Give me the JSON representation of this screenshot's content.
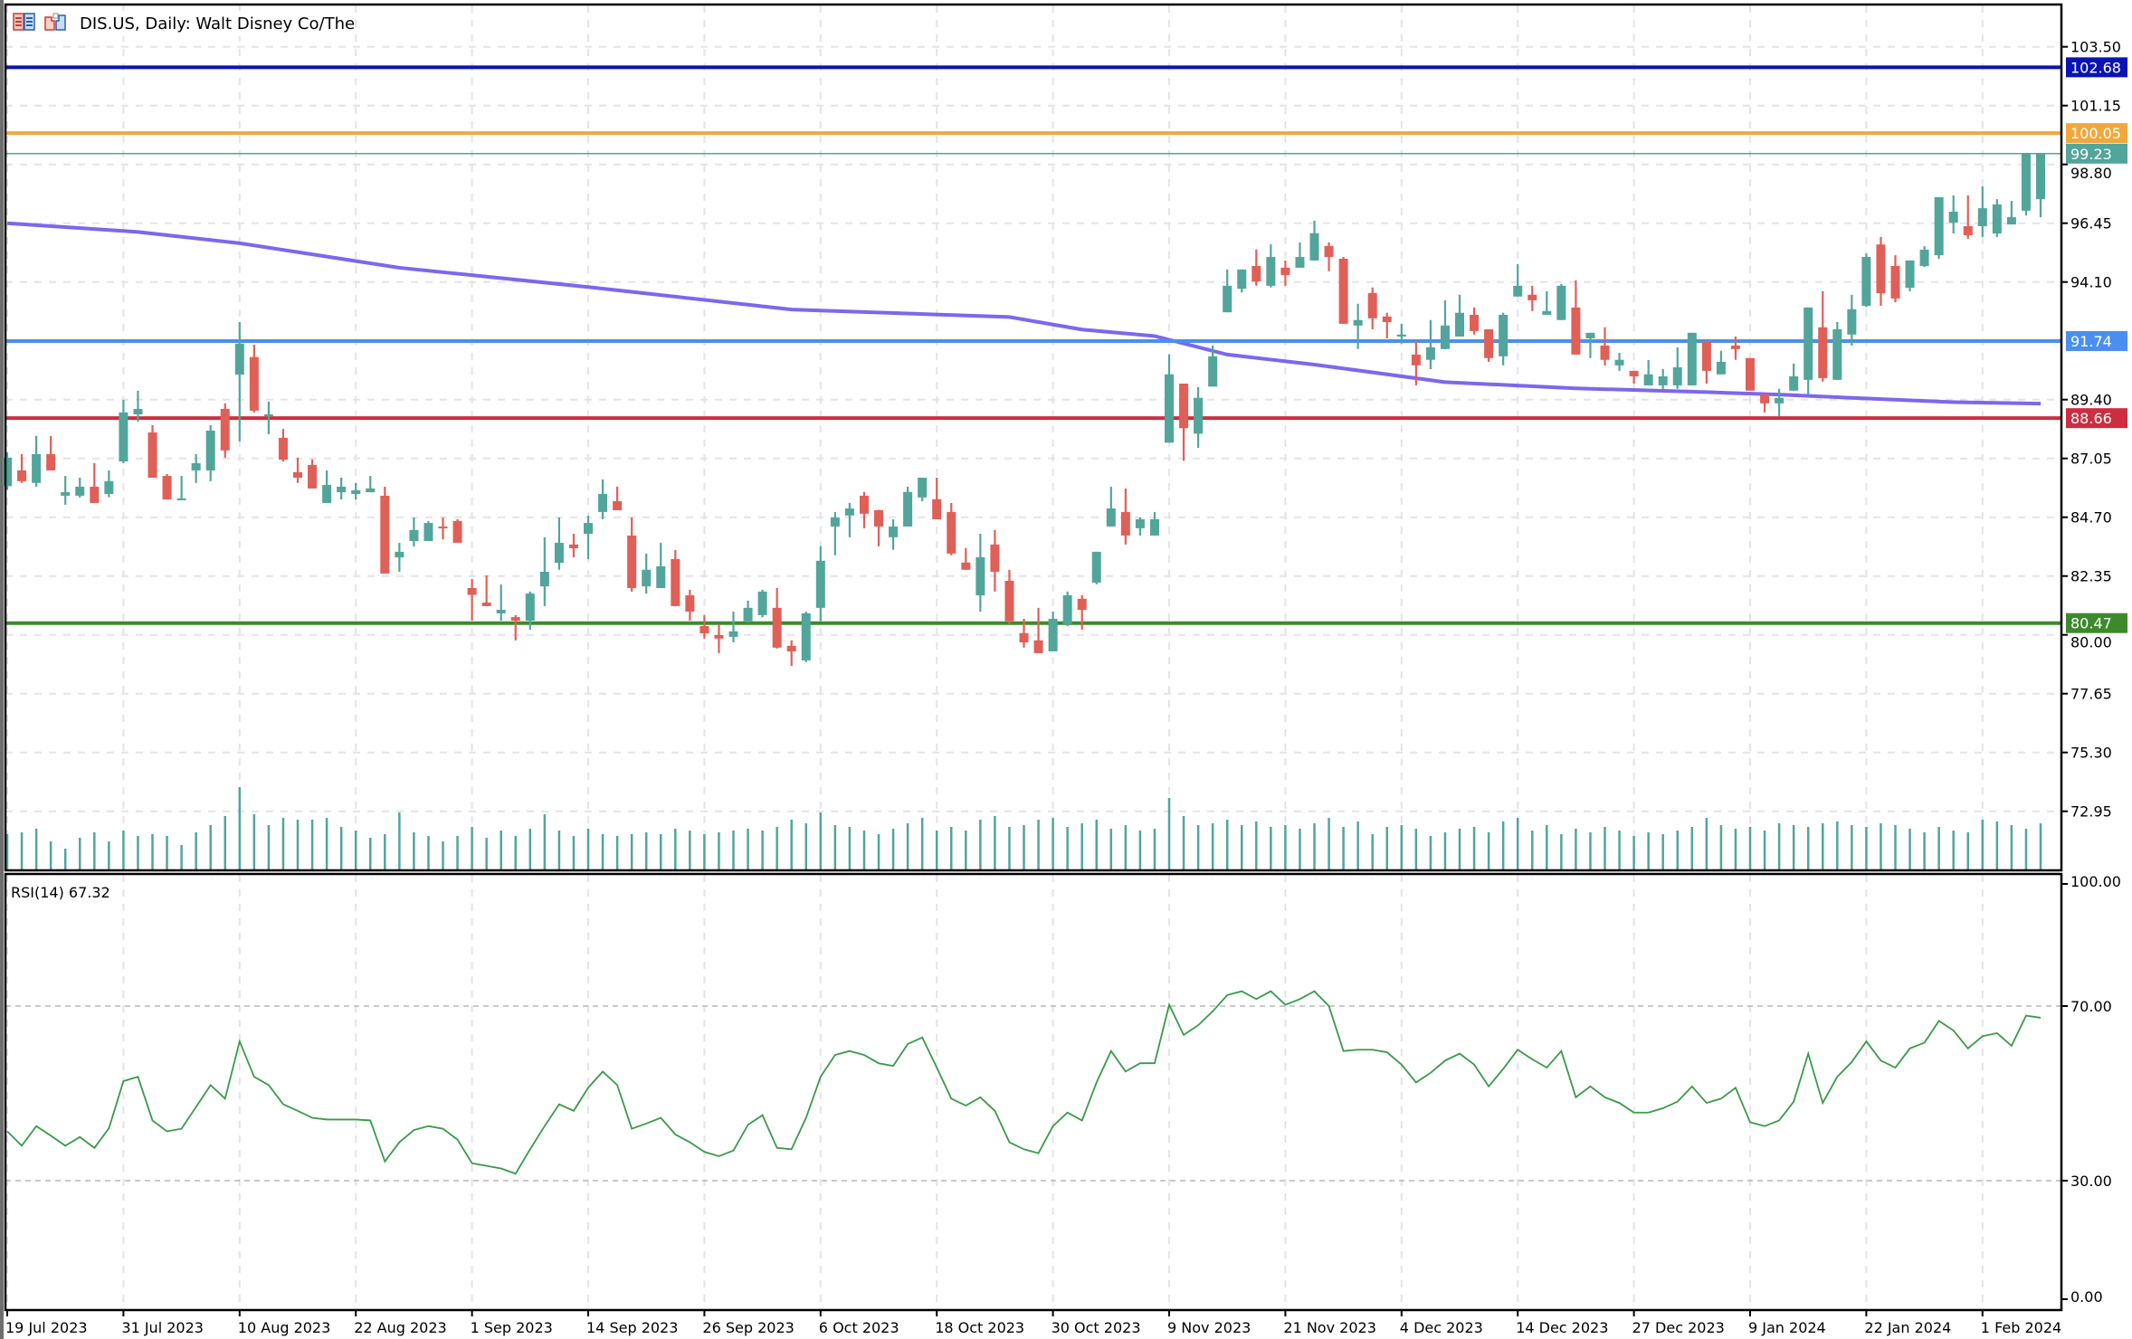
{
  "header": {
    "title": "DIS.US, Daily:  Walt Disney Co/The",
    "icons": [
      "quick-trade-icon",
      "one-click-trading-icon"
    ]
  },
  "colors": {
    "bull": "#52a59a",
    "bear": "#e05f57",
    "ma": "#7b68ee",
    "rsi": "#3a9a48",
    "grid": "#e6e2ea"
  },
  "price_axis": {
    "ticks": [
      "103.50",
      "101.15",
      "98.80",
      "96.45",
      "94.10",
      "89.40",
      "87.05",
      "84.70",
      "82.35",
      "80.00",
      "77.65",
      "75.30",
      "72.95"
    ]
  },
  "levels": [
    {
      "label": "102.68",
      "value": 102.68,
      "color": "#0a14b4"
    },
    {
      "label": "100.05",
      "value": 100.05,
      "color": "#f0a83c"
    },
    {
      "label": "99.23",
      "value": 99.23,
      "color": "#52a59a"
    },
    {
      "label": "91.74",
      "value": 91.74,
      "color": "#4a8ff0"
    },
    {
      "label": "88.66",
      "value": 88.66,
      "color": "#cc2e40"
    },
    {
      "label": "80.47",
      "value": 80.47,
      "color": "#3c8a2c"
    }
  ],
  "date_axis": [
    {
      "label": "19 Jul 2023",
      "index": 0
    },
    {
      "label": "31 Jul 2023",
      "index": 8
    },
    {
      "label": "10 Aug 2023",
      "index": 16
    },
    {
      "label": "22 Aug 2023",
      "index": 24
    },
    {
      "label": "1 Sep 2023",
      "index": 32
    },
    {
      "label": "14 Sep 2023",
      "index": 40
    },
    {
      "label": "26 Sep 2023",
      "index": 48
    },
    {
      "label": "6 Oct 2023",
      "index": 56
    },
    {
      "label": "18 Oct 2023",
      "index": 64
    },
    {
      "label": "30 Oct 2023",
      "index": 72
    },
    {
      "label": "9 Nov 2023",
      "index": 80
    },
    {
      "label": "21 Nov 2023",
      "index": 88
    },
    {
      "label": "4 Dec 2023",
      "index": 96
    },
    {
      "label": "14 Dec 2023",
      "index": 104
    },
    {
      "label": "27 Dec 2023",
      "index": 112
    },
    {
      "label": "9 Jan 2024",
      "index": 120
    },
    {
      "label": "22 Jan 2024",
      "index": 128
    },
    {
      "label": "1 Feb 2024",
      "index": 136
    }
  ],
  "rsi": {
    "label": "RSI(14) 67.32",
    "axis": [
      "100.00",
      "70.00",
      "30.00",
      "0.00"
    ]
  },
  "chart_data": {
    "type": "candlestick",
    "title": "DIS.US, Daily:  Walt Disney Co/The",
    "ylim": [
      70.5,
      105.2
    ],
    "ohlc_order": [
      "open",
      "high",
      "low",
      "close"
    ],
    "candles": [
      [
        85.94,
        87.3,
        85.8,
        87.08
      ],
      [
        86.57,
        87.22,
        86.07,
        86.14
      ],
      [
        86.07,
        87.95,
        85.92,
        87.22
      ],
      [
        87.22,
        87.95,
        86.57,
        86.57
      ],
      [
        85.56,
        86.35,
        85.2,
        85.7
      ],
      [
        85.56,
        86.28,
        85.49,
        85.92
      ],
      [
        85.92,
        86.86,
        85.27,
        85.27
      ],
      [
        85.63,
        86.57,
        85.5,
        86.14
      ],
      [
        86.93,
        89.39,
        86.86,
        88.89
      ],
      [
        88.81,
        89.75,
        88.52,
        89.03
      ],
      [
        88.09,
        88.38,
        86.28,
        86.28
      ],
      [
        86.35,
        86.43,
        85.41,
        85.41
      ],
      [
        85.42,
        86.35,
        85.4,
        85.45
      ],
      [
        86.57,
        87.22,
        86.07,
        86.86
      ],
      [
        86.57,
        88.38,
        86.14,
        88.16
      ],
      [
        89.03,
        89.25,
        87.08,
        87.37
      ],
      [
        90.4,
        92.5,
        87.73,
        91.64
      ],
      [
        91.1,
        91.6,
        88.89,
        88.96
      ],
      [
        88.74,
        89.32,
        88.02,
        88.81
      ],
      [
        87.87,
        88.23,
        86.93,
        87.0
      ],
      [
        86.5,
        87.08,
        86.07,
        86.28
      ],
      [
        86.79,
        87.01,
        85.85,
        85.85
      ],
      [
        85.27,
        86.57,
        85.27,
        85.99
      ],
      [
        85.7,
        86.28,
        85.41,
        85.92
      ],
      [
        85.63,
        86.07,
        85.41,
        85.78
      ],
      [
        85.7,
        86.35,
        85.7,
        85.85
      ],
      [
        85.56,
        85.92,
        82.45,
        82.45
      ],
      [
        83.1,
        83.68,
        82.52,
        83.32
      ],
      [
        83.75,
        84.69,
        83.53,
        84.19
      ],
      [
        83.75,
        84.55,
        83.75,
        84.47
      ],
      [
        84.33,
        84.69,
        83.82,
        84.26
      ],
      [
        84.55,
        84.62,
        83.68,
        83.68
      ],
      [
        81.87,
        82.23,
        80.57,
        81.6
      ],
      [
        81.29,
        82.38,
        81.15,
        81.15
      ],
      [
        80.86,
        82.02,
        80.57,
        81.0
      ],
      [
        80.71,
        80.79,
        79.78,
        80.57
      ],
      [
        80.57,
        81.73,
        80.21,
        81.65
      ],
      [
        81.94,
        83.9,
        81.15,
        82.52
      ],
      [
        82.88,
        84.69,
        82.6,
        83.68
      ],
      [
        83.61,
        84.04,
        83.1,
        83.46
      ],
      [
        84.04,
        84.76,
        83.03,
        84.47
      ],
      [
        84.91,
        86.21,
        84.62,
        85.63
      ],
      [
        85.34,
        85.92,
        84.98,
        84.98
      ],
      [
        83.97,
        84.69,
        81.73,
        81.87
      ],
      [
        81.94,
        83.25,
        81.65,
        82.6
      ],
      [
        81.87,
        83.68,
        81.87,
        82.74
      ],
      [
        83.03,
        83.39,
        81.15,
        81.15
      ],
      [
        81.58,
        81.8,
        80.57,
        80.93
      ],
      [
        80.35,
        80.79,
        79.85,
        80.06
      ],
      [
        79.99,
        80.43,
        79.27,
        79.85
      ],
      [
        79.92,
        80.93,
        79.7,
        80.14
      ],
      [
        80.55,
        81.37,
        80.5,
        81.08
      ],
      [
        80.79,
        81.8,
        80.7,
        81.73
      ],
      [
        81.08,
        81.87,
        79.45,
        79.49
      ],
      [
        79.56,
        79.78,
        78.76,
        79.34
      ],
      [
        78.98,
        80.93,
        78.91,
        80.86
      ],
      [
        81.08,
        83.54,
        80.55,
        82.96
      ],
      [
        84.33,
        84.91,
        83.18,
        84.69
      ],
      [
        84.77,
        85.27,
        83.9,
        85.05
      ],
      [
        85.56,
        85.71,
        84.26,
        84.84
      ],
      [
        84.98,
        85.0,
        83.54,
        84.33
      ],
      [
        83.9,
        84.62,
        83.4,
        84.33
      ],
      [
        84.33,
        85.92,
        84.33,
        85.71
      ],
      [
        85.49,
        86.28,
        85.34,
        86.28
      ],
      [
        85.42,
        86.28,
        84.62,
        84.62
      ],
      [
        84.91,
        85.27,
        83.18,
        83.25
      ],
      [
        82.89,
        83.47,
        82.6,
        82.6
      ],
      [
        81.58,
        84.04,
        80.93,
        83.1
      ],
      [
        83.61,
        84.19,
        81.73,
        82.52
      ],
      [
        82.16,
        82.6,
        80.43,
        80.55
      ],
      [
        80.07,
        80.64,
        79.49,
        79.7
      ],
      [
        79.78,
        81.08,
        79.27,
        79.27
      ],
      [
        79.34,
        80.93,
        79.34,
        80.64
      ],
      [
        80.43,
        81.73,
        80.35,
        81.58
      ],
      [
        81.44,
        81.58,
        80.21,
        81.0
      ],
      [
        82.09,
        83.32,
        82.02,
        83.32
      ],
      [
        84.33,
        85.92,
        84.33,
        85.05
      ],
      [
        84.91,
        85.85,
        83.61,
        83.97
      ],
      [
        84.26,
        84.69,
        83.97,
        84.62
      ],
      [
        83.97,
        84.91,
        83.97,
        84.62
      ],
      [
        87.68,
        91.2,
        87.68,
        90.41
      ],
      [
        90.04,
        90.04,
        86.96,
        88.26
      ],
      [
        88.04,
        89.9,
        87.47,
        89.47
      ],
      [
        89.92,
        91.56,
        89.92,
        91.13
      ],
      [
        92.89,
        94.6,
        92.89,
        93.95
      ],
      [
        93.83,
        94.6,
        93.68,
        94.6
      ],
      [
        94.74,
        95.4,
        93.95,
        94.12
      ],
      [
        93.95,
        95.61,
        93.88,
        95.1
      ],
      [
        94.67,
        94.96,
        93.95,
        94.38
      ],
      [
        94.67,
        95.68,
        94.67,
        95.1
      ],
      [
        94.96,
        96.55,
        94.96,
        96.05
      ],
      [
        95.54,
        95.68,
        94.53,
        95.1
      ],
      [
        95.03,
        95.1,
        92.43,
        92.43
      ],
      [
        92.36,
        93.23,
        91.42,
        92.58
      ],
      [
        93.66,
        93.88,
        92.21,
        92.65
      ],
      [
        92.72,
        92.87,
        91.85,
        92.5
      ],
      [
        91.92,
        92.43,
        91.64,
        92.0
      ],
      [
        91.2,
        91.71,
        89.97,
        90.77
      ],
      [
        90.99,
        92.58,
        90.62,
        91.49
      ],
      [
        91.42,
        93.37,
        91.42,
        92.36
      ],
      [
        91.92,
        93.59,
        91.92,
        92.87
      ],
      [
        92.79,
        93.08,
        92.0,
        92.14
      ],
      [
        92.21,
        92.21,
        90.91,
        91.06
      ],
      [
        91.13,
        92.87,
        90.77,
        92.79
      ],
      [
        93.52,
        94.82,
        93.52,
        93.95
      ],
      [
        93.59,
        93.95,
        92.94,
        93.37
      ],
      [
        92.79,
        93.73,
        92.79,
        92.94
      ],
      [
        92.58,
        94.02,
        92.58,
        93.95
      ],
      [
        93.08,
        94.17,
        91.2,
        91.2
      ],
      [
        91.85,
        92.07,
        91.06,
        92.07
      ],
      [
        91.56,
        92.29,
        90.77,
        90.99
      ],
      [
        90.77,
        91.27,
        90.55,
        90.99
      ],
      [
        90.55,
        90.55,
        90.04,
        90.33
      ],
      [
        89.97,
        90.98,
        89.97,
        90.41
      ],
      [
        89.97,
        90.62,
        89.83,
        90.33
      ],
      [
        89.97,
        91.49,
        89.83,
        90.69
      ],
      [
        89.97,
        92.07,
        89.97,
        92.07
      ],
      [
        91.71,
        91.71,
        90.04,
        90.55
      ],
      [
        90.41,
        91.35,
        90.41,
        90.91
      ],
      [
        91.56,
        91.92,
        90.99,
        91.42
      ],
      [
        91.06,
        91.06,
        89.76,
        89.76
      ],
      [
        89.61,
        89.61,
        88.89,
        89.25
      ],
      [
        89.25,
        89.83,
        88.74,
        89.47
      ],
      [
        89.76,
        90.84,
        89.76,
        90.33
      ],
      [
        90.19,
        93.08,
        89.61,
        93.08
      ],
      [
        92.29,
        93.73,
        90.12,
        90.26
      ],
      [
        90.19,
        92.5,
        90.19,
        92.21
      ],
      [
        92.0,
        93.59,
        91.56,
        93.01
      ],
      [
        93.15,
        95.24,
        93.1,
        95.1
      ],
      [
        95.6,
        95.9,
        93.15,
        93.65
      ],
      [
        94.74,
        95.17,
        93.29,
        93.44
      ],
      [
        93.87,
        94.96,
        93.73,
        94.96
      ],
      [
        94.74,
        95.53,
        94.7,
        95.39
      ],
      [
        95.17,
        97.49,
        95.03,
        97.49
      ],
      [
        96.47,
        97.56,
        96.04,
        96.91
      ],
      [
        96.33,
        97.56,
        95.82,
        95.97
      ],
      [
        96.33,
        97.92,
        95.9,
        97.05
      ],
      [
        96.04,
        97.41,
        95.9,
        97.2
      ],
      [
        96.4,
        97.34,
        96.4,
        96.69
      ],
      [
        96.95,
        99.23,
        96.76,
        99.23
      ],
      [
        97.41,
        99.23,
        96.69,
        99.23
      ]
    ],
    "moving_average": [
      [
        0,
        96.45
      ],
      [
        9,
        96.1
      ],
      [
        16,
        95.65
      ],
      [
        27,
        94.67
      ],
      [
        40,
        93.9
      ],
      [
        54,
        93.0
      ],
      [
        69,
        92.7
      ],
      [
        74,
        92.2
      ],
      [
        79,
        91.94
      ],
      [
        84,
        91.2
      ],
      [
        90,
        90.8
      ],
      [
        99,
        90.1
      ],
      [
        108,
        89.85
      ],
      [
        117,
        89.7
      ],
      [
        122,
        89.6
      ],
      [
        127,
        89.47
      ],
      [
        134,
        89.3
      ],
      [
        140,
        89.24
      ]
    ],
    "volume": [
      40,
      42,
      46,
      32,
      24,
      36,
      42,
      32,
      44,
      38,
      40,
      38,
      28,
      42,
      50,
      60,
      92,
      62,
      50,
      58,
      56,
      56,
      58,
      48,
      44,
      36,
      40,
      64,
      42,
      38,
      32,
      38,
      48,
      36,
      44,
      38,
      46,
      62,
      44,
      38,
      46,
      40,
      38,
      40,
      42,
      40,
      46,
      44,
      40,
      42,
      44,
      46,
      44,
      48,
      56,
      52,
      64,
      50,
      48,
      44,
      40,
      46,
      52,
      58,
      44,
      48,
      44,
      56,
      60,
      48,
      50,
      56,
      58,
      48,
      52,
      56,
      46,
      50,
      44,
      46,
      80,
      60,
      50,
      52,
      56,
      50,
      54,
      48,
      50,
      46,
      52,
      58,
      48,
      54,
      40,
      48,
      50,
      46,
      38,
      42,
      46,
      48,
      42,
      54,
      58,
      44,
      50,
      40,
      46,
      42,
      48,
      44,
      38,
      42,
      40,
      44,
      48,
      58,
      50,
      46,
      48,
      44,
      52,
      50,
      48,
      52,
      54,
      50,
      48,
      52,
      50,
      46,
      42,
      48,
      44,
      42,
      56,
      54,
      50,
      46,
      52
    ],
    "rsi_values": [
      41.3,
      38,
      42.5,
      40.3,
      38,
      40,
      37.5,
      42,
      52.8,
      53.8,
      43.8,
      41.3,
      41.9,
      46.9,
      51.9,
      48.8,
      61.9,
      53.8,
      51.9,
      47.5,
      46,
      44.4,
      44,
      44,
      44,
      43.8,
      34.4,
      38.8,
      41.6,
      42.5,
      41.9,
      39.4,
      34,
      33.4,
      32.8,
      31.6,
      37.2,
      42.5,
      47.5,
      46,
      51.3,
      55,
      51.9,
      41.9,
      43.1,
      44.4,
      40.6,
      38.8,
      36.6,
      35.6,
      36.9,
      42.8,
      45,
      37.5,
      37.2,
      44.4,
      53.8,
      58.8,
      59.7,
      58.8,
      56.9,
      56.3,
      61.3,
      62.8,
      55.9,
      48.8,
      47.2,
      49.1,
      46,
      38.8,
      37.2,
      36.3,
      42.5,
      45.6,
      43.8,
      52.5,
      59.7,
      55,
      56.9,
      56.9,
      70.3,
      63.4,
      65.6,
      68.8,
      72.5,
      73.4,
      71.6,
      73.4,
      70.3,
      71.6,
      73.4,
      70,
      59.7,
      60,
      60,
      59.4,
      56.6,
      52.5,
      54.7,
      57.5,
      59.1,
      56.6,
      51.6,
      55.6,
      60,
      57.8,
      55.9,
      59.7,
      49.1,
      51.6,
      49.1,
      47.8,
      45.6,
      45.6,
      46.6,
      48.1,
      51.6,
      47.8,
      48.8,
      51.3,
      43.4,
      42.5,
      43.8,
      48.1,
      59.1,
      47.8,
      53.8,
      57.2,
      61.9,
      57.5,
      55.9,
      60.3,
      61.6,
      66.6,
      64.4,
      60.3,
      63.1,
      63.8,
      60.9,
      67.8,
      67.32
    ],
    "rsi_levels": [
      70,
      30
    ],
    "rsi_ylim": [
      0,
      100
    ]
  }
}
